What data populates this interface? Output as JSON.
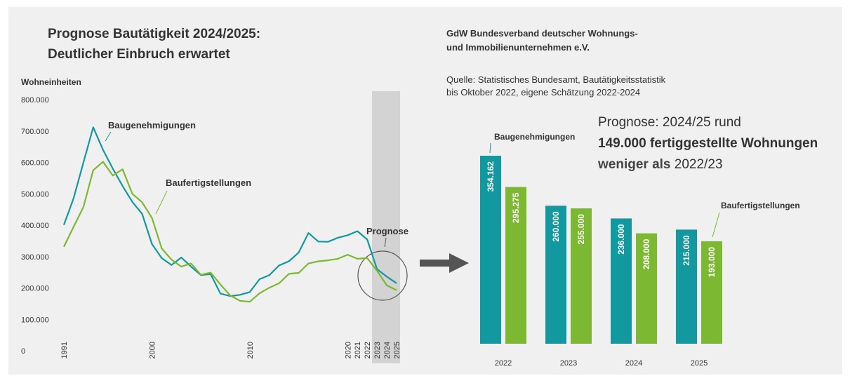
{
  "chart_data": [
    {
      "type": "line",
      "title": [
        "Prognose Bautätigkeit 2024/2025:",
        "Deutlicher Einbruch erwartet"
      ],
      "ylabel": "Wohneinheiten",
      "x": [
        1991,
        1992,
        1993,
        1994,
        1995,
        1996,
        1997,
        1998,
        1999,
        2000,
        2001,
        2002,
        2003,
        2004,
        2005,
        2006,
        2007,
        2008,
        2009,
        2010,
        2011,
        2012,
        2013,
        2014,
        2015,
        2016,
        2017,
        2018,
        2019,
        2020,
        2021,
        2022,
        2023,
        2024,
        2025
      ],
      "xlim": [
        1991,
        2025
      ],
      "xticks": [
        1991,
        2000,
        2010,
        2020,
        2021,
        2022,
        2023,
        2024,
        2025
      ],
      "ylim": [
        0,
        800000
      ],
      "yticks": [
        0,
        {
          "value": 100000,
          "label": "100.000"
        },
        {
          "value": 200000,
          "label": "200.000"
        },
        {
          "value": 300000,
          "label": "300.000"
        },
        {
          "value": 400000,
          "label": "400.000"
        },
        {
          "value": 500000,
          "label": "500.000"
        },
        {
          "value": 600000,
          "label": "600.000"
        },
        {
          "value": 700000,
          "label": "700.000"
        },
        {
          "value": 800000,
          "label": "800.000"
        }
      ],
      "series": [
        {
          "name": "Baugenehmigungen",
          "color": "#12989f",
          "values": [
            401000,
            486000,
            600000,
            712000,
            640000,
            580000,
            525000,
            474000,
            436000,
            340000,
            295000,
            273000,
            297000,
            268000,
            241000,
            244000,
            182000,
            174000,
            178000,
            187000,
            228000,
            241000,
            272000,
            285000,
            313000,
            375000,
            348000,
            347000,
            360000,
            368000,
            381000,
            354162,
            260000,
            236000,
            215000
          ]
        },
        {
          "name": "Baufertigstellungen",
          "color": "#7cb832",
          "values": [
            331000,
            395000,
            458000,
            575000,
            602000,
            558000,
            578000,
            500000,
            473000,
            423000,
            326000,
            290000,
            268000,
            278000,
            242000,
            249000,
            211000,
            176000,
            159000,
            156000,
            183000,
            201000,
            215000,
            245000,
            248000,
            278000,
            285000,
            288000,
            293000,
            306000,
            293000,
            295275,
            255000,
            208000,
            193000
          ]
        }
      ],
      "annotation": "Prognose"
    },
    {
      "type": "bar",
      "categories": [
        "2022",
        "2023",
        "2024",
        "2025"
      ],
      "series": [
        {
          "name": "Baugenehmigungen",
          "color": "#12989f",
          "values": [
            354162,
            260000,
            236000,
            215000
          ],
          "value_labels": [
            "354.162",
            "260.000",
            "236.000",
            "215.000"
          ]
        },
        {
          "name": "Baufertigstellungen",
          "color": "#7cb832",
          "values": [
            295275,
            255000,
            208000,
            193000
          ],
          "value_labels": [
            "295.275",
            "255.000",
            "208.000",
            "193.000"
          ]
        }
      ]
    }
  ],
  "publisher": [
    "GdW Bundesverband deutscher Wohnungs-",
    "und Immobilienunternehmen e.V."
  ],
  "source": [
    "Quelle: Statistisches Bundesamt, Bautätigkeitsstatistik",
    "bis Oktober 2022, eigene Schätzung 2022-2024"
  ],
  "headline": {
    "line1": "Prognose: 2024/25 rund",
    "line2": "149.000 fertiggestellte Wohnungen",
    "line3_bold": "weniger als",
    "line3": "2022/23"
  }
}
